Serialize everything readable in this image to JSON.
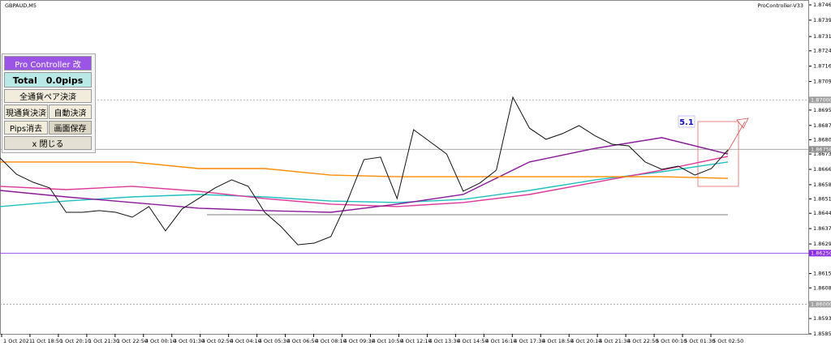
{
  "window": {
    "symbol": "GBPAUD,M5",
    "indicator": "ProController-V33"
  },
  "panel": {
    "title": "Pro Controller 改",
    "total": "Total　0.0pips",
    "close_all": "全通貨ペア決済",
    "close_current": "現通貨決済",
    "auto_close": "自動決済",
    "clear_pips": "Pips消去",
    "save_screen": "画面保存",
    "close_panel": "x 閉じる"
  },
  "chart_data": {
    "type": "line",
    "annotation": "5.1",
    "ylim": [
      1.85855,
      1.87465
    ],
    "yticks": [
      1.87465,
      {
        "value": 1.8739,
        "label": "1.87390"
      },
      {
        "value": 1.8731,
        "label": "1.87310"
      },
      {
        "value": 1.8724,
        "label": "1.87240"
      },
      1.87165,
      {
        "value": 1.8709,
        "label": "1.87090"
      },
      {
        "value": 1.8695,
        "label": "1.86950"
      },
      1.86875,
      1.86805,
      1.86735,
      {
        "value": 1.8666,
        "label": "1.86660"
      },
      1.86585,
      1.86515,
      1.86445,
      {
        "value": 1.8637,
        "label": "1.86370"
      },
      1.86295,
      {
        "value": 1.8615,
        "label": "1.86150"
      },
      {
        "value": 1.8608,
        "label": "1.86080"
      },
      {
        "value": 1.8593,
        "label": "1.85930"
      },
      1.85855
    ],
    "x_labels": [
      "1 Oct 2021",
      "1 Oct 18:50",
      "1 Oct 20:10",
      "1 Oct 21:30",
      "1 Oct 22:50",
      "4 Oct 00:10",
      "4 Oct 01:30",
      "4 Oct 02:50",
      "4 Oct 04:10",
      "4 Oct 05:30",
      "4 Oct 06:50",
      "4 Oct 08:10",
      "4 Oct 09:30",
      "4 Oct 10:50",
      "4 Oct 12:10",
      "4 Oct 13:30",
      "4 Oct 14:50",
      "4 Oct 16:10",
      "4 Oct 17:30",
      "4 Oct 18:50",
      "4 Oct 20:10",
      "4 Oct 21:30",
      "4 Oct 22:50",
      "5 Oct 00:10",
      "5 Oct 01:30",
      "5 Oct 02:50"
    ],
    "levels": [
      {
        "value": 1.87,
        "label": "1.87000",
        "color": "#a0a0a0",
        "dashed": true
      },
      {
        "value": 1.86758,
        "label": 1.86758,
        "color": "#909090",
        "dashed": false
      },
      {
        "value": 1.8625,
        "label": "1.86250",
        "color": "#8a2be2",
        "dashed": false
      },
      {
        "value": 1.86,
        "label": "1.86000",
        "color": "#a0a0a0",
        "dashed": true
      },
      {
        "value": 1.86438,
        "color": "#505050",
        "dashed": false
      }
    ],
    "series": [
      {
        "color": "#111111",
        "values": [
          1.86716,
          1.86636,
          1.86597,
          1.86569,
          1.8645,
          1.8645,
          1.86458,
          1.8645,
          1.86426,
          1.86478,
          1.86359,
          1.86466,
          1.86517,
          1.86569,
          1.86609,
          1.86577,
          1.8645,
          1.86379,
          1.86291,
          1.86299,
          1.86331,
          1.86505,
          1.86708,
          1.8672,
          1.86517,
          1.86854,
          1.86795,
          1.86735,
          1.86553,
          1.86593,
          1.86656,
          1.87013,
          1.86862,
          1.86807,
          1.86835,
          1.86874,
          1.86823,
          1.86783,
          1.86775,
          1.86696,
          1.8666,
          1.86676,
          1.86632,
          1.86664,
          1.86755
        ]
      },
      {
        "color": "#ff8c00",
        "values": [
          1.86696,
          1.86696,
          1.86696,
          1.86664,
          1.86664,
          1.86632,
          1.86624,
          1.86624,
          1.86624,
          1.86624,
          1.86624,
          1.86616
        ]
      },
      {
        "color": "#8b1a9b",
        "values": [
          1.86557,
          1.86525,
          1.86498,
          1.8647,
          1.86458,
          1.8645,
          1.8649,
          1.86537,
          1.86696,
          1.86763,
          1.86815,
          1.86735
        ]
      },
      {
        "color": "#e0389a",
        "values": [
          1.86577,
          1.86561,
          1.86577,
          1.86553,
          1.86517,
          1.8649,
          1.86478,
          1.86498,
          1.86537,
          1.86597,
          1.86656,
          1.86724
        ]
      },
      {
        "color": "#20c0c0",
        "values": [
          1.86478,
          1.86505,
          1.86525,
          1.86537,
          1.86525,
          1.86505,
          1.86498,
          1.86513,
          1.86557,
          1.86609,
          1.86648,
          1.86696
        ]
      }
    ]
  }
}
